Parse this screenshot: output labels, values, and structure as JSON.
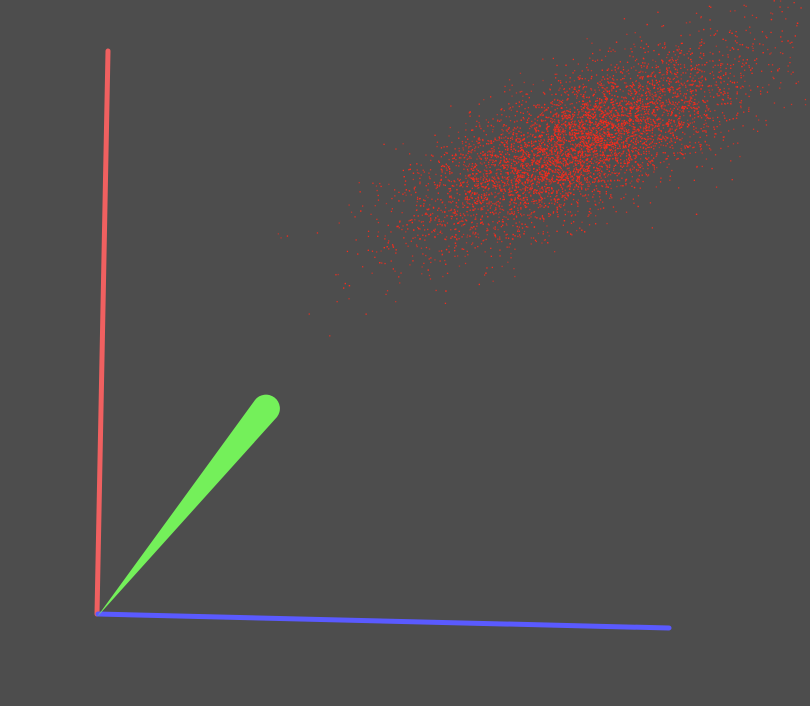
{
  "scene": {
    "background_color": "#4d4d4d",
    "axes": [
      {
        "name": "x-axis",
        "color": "#f06060"
      },
      {
        "name": "y-axis",
        "color": "#74f05a"
      },
      {
        "name": "z-axis",
        "color": "#5a5aff"
      }
    ],
    "point_cloud": {
      "color": "#ff2a1a",
      "point_count": 6500,
      "distribution": "gaussian"
    }
  }
}
